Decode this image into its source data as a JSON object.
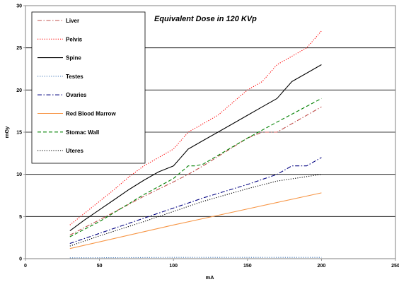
{
  "chart_data": {
    "type": "line",
    "title": "Equivalent Dose in 120 KVp",
    "xlabel": "mA",
    "ylabel": "mGy",
    "xlim": [
      0,
      250
    ],
    "ylim": [
      0,
      30
    ],
    "xticks": [
      0,
      50,
      100,
      150,
      200,
      250
    ],
    "yticks": [
      0,
      5,
      10,
      15,
      20,
      25,
      30
    ],
    "grid": "horizontal",
    "legend_position": "top-left",
    "series": [
      {
        "name": "Liver",
        "color": "#c0504d",
        "dash": "dash-dot",
        "x": [
          30,
          50,
          80,
          100,
          110,
          120,
          150,
          160,
          170,
          200
        ],
        "y": [
          2.8,
          4.6,
          7.4,
          9.1,
          10.0,
          11.0,
          14.3,
          15.0,
          15.0,
          18.0
        ]
      },
      {
        "name": "Pelvis",
        "color": "#ff0000",
        "dash": "dotted",
        "x": [
          30,
          40,
          50,
          60,
          70,
          80,
          90,
          100,
          110,
          120,
          130,
          140,
          150,
          160,
          170,
          180,
          190,
          200
        ],
        "y": [
          4.0,
          5.4,
          6.8,
          8.2,
          9.7,
          11.0,
          12.0,
          13.0,
          15.0,
          16.0,
          17.0,
          18.5,
          20.0,
          21.0,
          23.0,
          24.0,
          25.0,
          27.0
        ]
      },
      {
        "name": "Spine",
        "color": "#000000",
        "dash": "solid",
        "x": [
          30,
          40,
          50,
          60,
          70,
          80,
          90,
          100,
          110,
          120,
          130,
          140,
          150,
          160,
          170,
          175,
          180,
          190,
          200
        ],
        "y": [
          3.3,
          4.6,
          5.8,
          7.0,
          8.2,
          9.3,
          10.3,
          11.0,
          13.0,
          14.0,
          15.0,
          16.0,
          17.0,
          18.0,
          19.0,
          20.0,
          21.0,
          22.0,
          23.0
        ]
      },
      {
        "name": "Testes",
        "color": "#4f81bd",
        "dash": "dotted",
        "x": [
          30,
          100,
          150,
          200
        ],
        "y": [
          0.1,
          0.15,
          0.15,
          0.15
        ]
      },
      {
        "name": "Ovaries",
        "color": "#000080",
        "dash": "dash-dot",
        "x": [
          30,
          50,
          80,
          100,
          120,
          150,
          170,
          180,
          190,
          200
        ],
        "y": [
          1.8,
          3.0,
          4.8,
          6.0,
          7.2,
          8.8,
          10.0,
          11.0,
          11.0,
          12.0
        ]
      },
      {
        "name": "Red Blood Marrow",
        "color": "#f79646",
        "dash": "solid",
        "x": [
          30,
          100,
          150,
          200
        ],
        "y": [
          1.2,
          4.0,
          5.9,
          7.8
        ]
      },
      {
        "name": "Stomac Wall",
        "color": "#008000",
        "dash": "dashed",
        "x": [
          30,
          50,
          80,
          100,
          110,
          115,
          120,
          150,
          170,
          200
        ],
        "y": [
          2.6,
          4.4,
          7.6,
          9.5,
          11.0,
          11.0,
          11.2,
          14.3,
          16.2,
          19.0
        ]
      },
      {
        "name": "Uteres",
        "color": "#000000",
        "dash": "dotted",
        "x": [
          30,
          50,
          80,
          100,
          120,
          150,
          170,
          200
        ],
        "y": [
          1.5,
          2.7,
          4.4,
          5.6,
          6.8,
          8.3,
          9.2,
          10.0
        ]
      }
    ]
  }
}
